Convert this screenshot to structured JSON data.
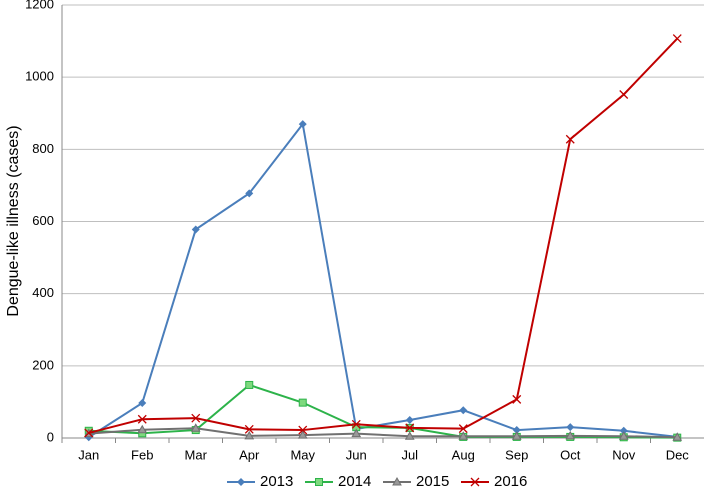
{
  "chart_data": {
    "type": "line",
    "y_label": "Dengue-like illness (cases)",
    "categories": [
      "Jan",
      "Feb",
      "Mar",
      "Apr",
      "May",
      "Jun",
      "Jul",
      "Aug",
      "Sep",
      "Oct",
      "Nov",
      "Dec"
    ],
    "series": [
      {
        "name": "2013",
        "color": "#4a7ebb",
        "marker": "diamond",
        "values": [
          2,
          97,
          578,
          678,
          870,
          25,
          50,
          77,
          22,
          30,
          20,
          3
        ]
      },
      {
        "name": "2014",
        "color": "#2db34a",
        "marker": "square",
        "values": [
          20,
          13,
          22,
          147,
          98,
          30,
          28,
          3,
          3,
          3,
          2,
          1
        ]
      },
      {
        "name": "2015",
        "color": "#707070",
        "marker": "triangle",
        "values": [
          12,
          23,
          27,
          6,
          8,
          12,
          5,
          5,
          5,
          6,
          5,
          2
        ]
      },
      {
        "name": "2016",
        "color": "#c00000",
        "marker": "x",
        "values": [
          14,
          52,
          55,
          24,
          22,
          38,
          28,
          26,
          107,
          828,
          952,
          1107
        ]
      }
    ],
    "ylim": [
      0,
      1200
    ],
    "yticks": [
      0,
      200,
      400,
      600,
      800,
      1000,
      1200
    ],
    "grid": true,
    "legend": "bottom"
  }
}
